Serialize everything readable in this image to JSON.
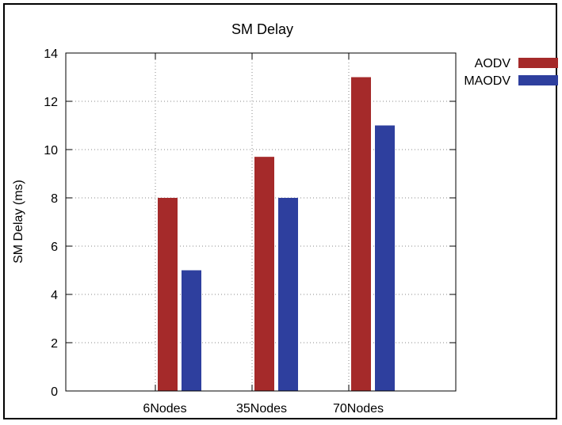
{
  "chart_data": {
    "type": "bar",
    "title": "SM Delay",
    "xlabel": "",
    "ylabel": "SM Delay (ms)",
    "categories": [
      "6Nodes",
      "35Nodes",
      "70Nodes"
    ],
    "series": [
      {
        "name": "AODV",
        "values": [
          8,
          9.7,
          13
        ],
        "color": "#a52a2a"
      },
      {
        "name": "MAODV",
        "values": [
          5,
          8,
          11
        ],
        "color": "#2e3f9e"
      }
    ],
    "ylim": [
      0,
      14
    ],
    "yticks": [
      0,
      2,
      4,
      6,
      8,
      10,
      12,
      14
    ],
    "grid": true,
    "legend_position": "top-right outside"
  }
}
